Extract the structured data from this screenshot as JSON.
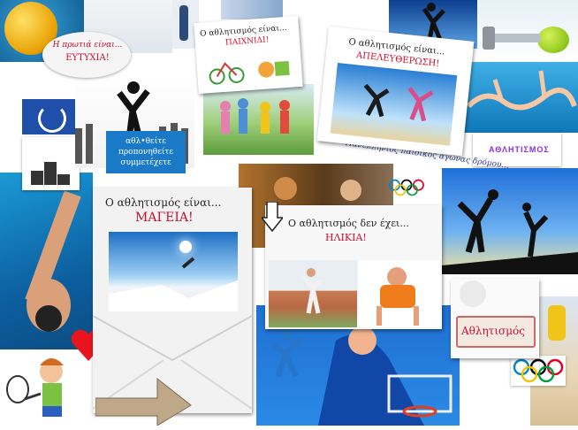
{
  "captions": {
    "luck_line1": "Η πρωτιά είναι...",
    "luck_line2": "ΕΥΤΥΧΙΑ!",
    "play_line1": "Ο αθλητισμός είναι...",
    "play_line2": "ΠΑΙΧΝΙΔΙ!",
    "freedom_line1": "Ο αθλητισμός είναι...",
    "freedom_line2": "ΑΠΕΛΕΥΘΕΡΩΣΗ!",
    "participate": "αθλ•θείτε προπονηθείτε συμμετέχετε",
    "wave_text": "Πανελλήνιος παιδικός αγώνας δρόμου...",
    "magic_line1": "Ο αθλητισμός είναι...",
    "magic_line2": "ΜΑΓΕΙΑ!",
    "age_line1": "Ο αθλητισμός δεν έχει...",
    "age_line2": "ΗΛΙΚΙΑ!",
    "sport_sign": "Αθλητισμός",
    "banner_small": "ΑΘΛΗΤΙΣΜΟΣ"
  },
  "colors": {
    "accent_red": "#c8102e",
    "sky_blue": "#2f86d6",
    "pool_blue": "#1f8fc9",
    "olympic_blue": "#0085c7",
    "olympic_yellow": "#f4c300",
    "olympic_black": "#000000",
    "olympic_green": "#009f3d",
    "olympic_red": "#df0024"
  },
  "icons": [
    "heart-icon",
    "olympic-rings-icon",
    "arrow-icon",
    "tennis-kid-icon",
    "laurel-icon"
  ]
}
